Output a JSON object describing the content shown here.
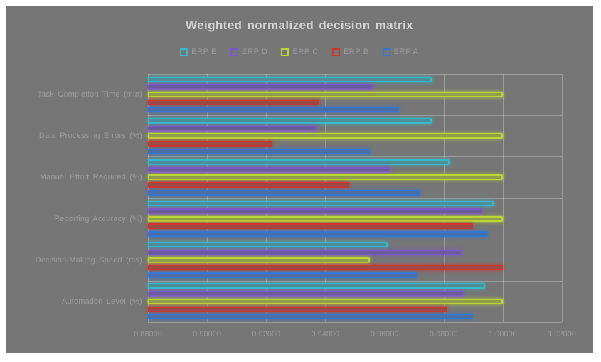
{
  "page": {
    "background": "#ffffff"
  },
  "chart": {
    "background": "#767676",
    "gridline_color": "rgba(255,255,255,0.28)",
    "title_color": "#d4d4d4",
    "label_color": "#9b9b9b"
  },
  "chart_data": {
    "type": "bar",
    "orientation": "horizontal",
    "title": "Weighted normalized decision matrix",
    "legend_position": "top-center",
    "grid": true,
    "xlim": [
      0.88,
      1.02
    ],
    "x_tick_labels": [
      "0.88000",
      "0.90000",
      "0.92000",
      "0.94000",
      "0.96000",
      "0.98000",
      "1.00000",
      "1.02000"
    ],
    "categories": [
      "Task Completion Time (min)",
      "Data Processing Errors (%)",
      "Manual Effort Required (%)",
      "Reporting Accuracy (%)",
      "Decision-Making Speed (ms)",
      "Automation Level (%)"
    ],
    "series": [
      {
        "name": "ERP E",
        "stroke": "#35b9cb",
        "fill": "#4f8e98",
        "values": [
          0.976,
          0.976,
          0.982,
          0.997,
          0.961,
          0.994
        ]
      },
      {
        "name": "ERP D",
        "stroke": "#7d57c9",
        "fill": "#6a5c9b",
        "values": [
          0.956,
          0.937,
          0.962,
          0.993,
          0.986,
          0.987
        ]
      },
      {
        "name": "ERP C",
        "stroke": "#bcd636",
        "fill": "#909d4a",
        "values": [
          1.0,
          1.0,
          1.0,
          1.0,
          0.955,
          1.0
        ]
      },
      {
        "name": "ERP B",
        "stroke": "#cf352b",
        "fill": "#9e4a45",
        "values": [
          0.938,
          0.922,
          0.948,
          0.99,
          1.0,
          0.981
        ]
      },
      {
        "name": "ERP A",
        "stroke": "#3377d2",
        "fill": "#4c6ea6",
        "values": [
          0.965,
          0.955,
          0.972,
          0.995,
          0.971,
          0.99
        ]
      }
    ]
  }
}
